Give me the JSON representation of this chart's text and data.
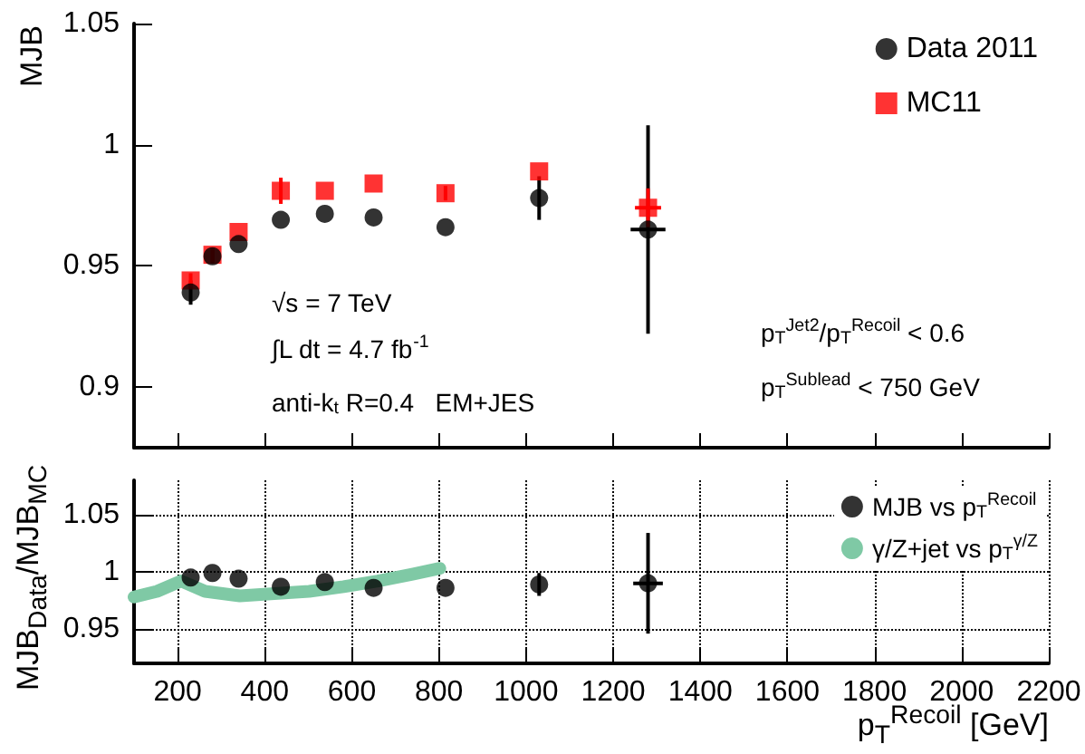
{
  "chart_data": [
    {
      "type": "scatter",
      "ylabel": "MJB",
      "annotations": [
        "√s = 7 TeV",
        "∫L dt = 4.7 fb$^{-1}$",
        "anti-k$_{t}$ R=0.4   EM+JES",
        "p$_{T}$$^{Jet2}$/p$_{T}$$^{Recoil}$ < 0.6",
        "p$_{T}$$^{Sublead}$ < 750 GeV"
      ],
      "xlim": [
        100,
        2200
      ],
      "xticks": [
        200,
        400,
        600,
        800,
        1000,
        1200,
        1400,
        1600,
        1800,
        2000,
        2200
      ],
      "ylim": [
        0.875,
        1.05
      ],
      "yticks": [
        0.9,
        0.95,
        1,
        1.05
      ],
      "tick_labels": "y",
      "legend": "top right",
      "series": [
        {
          "name": "Data 2011",
          "color": "#000000",
          "marker": "circle",
          "x": [
            230,
            280,
            340,
            437,
            538,
            650,
            815,
            1030,
            1280
          ],
          "values": [
            0.939,
            0.954,
            0.959,
            0.969,
            0.9715,
            0.97,
            0.966,
            0.978,
            0.965
          ],
          "errors": [
            0.005,
            0.003,
            null,
            null,
            null,
            null,
            null,
            0.009,
            0.043
          ],
          "xerrors": [
            null,
            null,
            null,
            null,
            null,
            null,
            null,
            null,
            40
          ]
        },
        {
          "name": "MC11",
          "color": "#ff0000",
          "marker": "square",
          "x": [
            230,
            280,
            340,
            437,
            538,
            650,
            815,
            1030,
            1280
          ],
          "values": [
            0.944,
            0.9546,
            0.964,
            0.981,
            0.981,
            0.984,
            0.98,
            0.989,
            0.974
          ],
          "errors": [
            0.003,
            0.003,
            null,
            0.0054,
            null,
            null,
            0.003,
            null,
            0.008
          ],
          "xerrors": [
            null,
            null,
            null,
            null,
            null,
            null,
            null,
            null,
            30
          ]
        }
      ]
    },
    {
      "type": "scatter",
      "xlabel": "p$_{T}$$^{Recoil}$ [GeV]",
      "ylabel": "MJB$_{Data}$/MJB$_{MC}$",
      "xlim": [
        100,
        2200
      ],
      "xticks": [
        200,
        400,
        600,
        800,
        1000,
        1200,
        1400,
        1600,
        1800,
        2000,
        2200
      ],
      "ylim": [
        0.92,
        1.08
      ],
      "yticks": [
        0.95,
        1,
        1.05
      ],
      "grid": true,
      "legend": "top right",
      "series": [
        {
          "name": "MJB vs p$_{T}$$^{Recoil}$",
          "color": "#000000",
          "marker": "circle",
          "x": [
            230,
            280,
            340,
            437,
            538,
            650,
            815,
            1030,
            1280
          ],
          "values": [
            0.995,
            0.999,
            0.994,
            0.987,
            0.991,
            0.986,
            0.986,
            0.989,
            0.99
          ],
          "errors": [
            null,
            null,
            null,
            null,
            null,
            null,
            null,
            0.01,
            0.044
          ],
          "xerrors": [
            null,
            null,
            null,
            null,
            null,
            null,
            null,
            null,
            34
          ]
        },
        {
          "name": "γ/Z+jet vs p$_{T}$$^{γ/Z}$",
          "type": "line",
          "color": "#7fc9a5",
          "marker": "none",
          "line_style": "solid",
          "x": [
            100,
            153,
            208,
            263,
            343,
            422,
            502,
            581,
            660,
            739,
            802
          ],
          "values": [
            0.978,
            0.983,
            0.992,
            0.983,
            0.979,
            0.981,
            0.983,
            0.987,
            0.992,
            0.998,
            1.003
          ]
        }
      ]
    }
  ]
}
